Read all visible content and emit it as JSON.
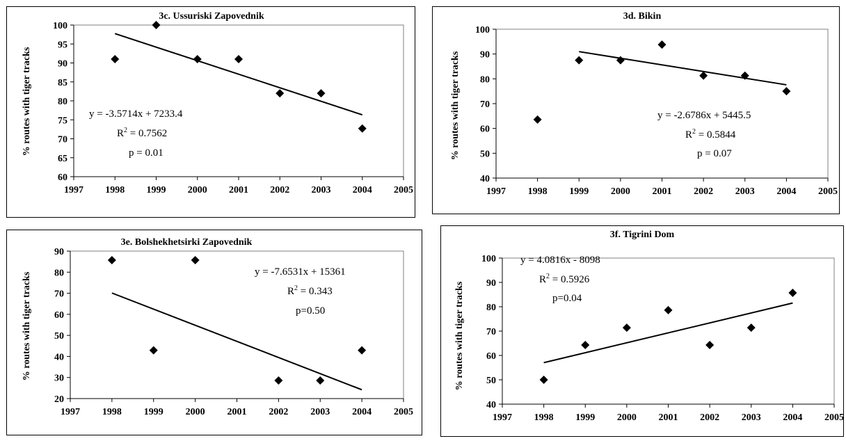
{
  "chart_data": [
    {
      "type": "scatter",
      "title": "3c. Ussuriski Zapovednik",
      "ylabel": "% routes with tiger tracks",
      "xlabel": "",
      "xlim": [
        1997,
        2005
      ],
      "ylim": [
        60,
        100
      ],
      "xticks": [
        1997,
        1998,
        1999,
        2000,
        2001,
        2002,
        2003,
        2004,
        2005
      ],
      "yticks": [
        60,
        65,
        70,
        75,
        80,
        85,
        90,
        95,
        100
      ],
      "points": [
        [
          1998,
          91
        ],
        [
          1999,
          100
        ],
        [
          2000,
          91
        ],
        [
          2001,
          91
        ],
        [
          2002,
          82
        ],
        [
          2003,
          82
        ],
        [
          2004,
          72.7
        ]
      ],
      "trendline": {
        "slope": -3.5714,
        "intercept": 7233.4,
        "x": [
          1998,
          2004
        ]
      },
      "annotations": [
        "y = -3.5714x + 7233.4",
        "R",
        "2",
        " = 0.7562",
        "p = 0.01"
      ],
      "grid": false,
      "marker": "diamond"
    },
    {
      "type": "scatter",
      "title": "3d. Bikin",
      "ylabel": "% routes with tiger tracks",
      "xlabel": "",
      "xlim": [
        1997,
        2005
      ],
      "ylim": [
        40,
        100
      ],
      "xticks": [
        1997,
        1998,
        1999,
        2000,
        2001,
        2002,
        2003,
        2004,
        2005
      ],
      "yticks": [
        40,
        50,
        60,
        70,
        80,
        90,
        100
      ],
      "points": [
        [
          1998,
          63.6
        ],
        [
          1999,
          87.5
        ],
        [
          2000,
          87.5
        ],
        [
          2001,
          93.8
        ],
        [
          2002,
          81.3
        ],
        [
          2003,
          81.3
        ],
        [
          2004,
          75
        ]
      ],
      "trendline": {
        "slope": -2.6786,
        "intercept": 5445.5,
        "x": [
          1999,
          2004
        ]
      },
      "annotations": [
        "y = -2.6786x + 5445.5",
        "R",
        "2",
        " = 0.5844",
        "p = 0.07"
      ],
      "grid": false,
      "marker": "diamond"
    },
    {
      "type": "scatter",
      "title": "3e. Bolshekhetsirki Zapovednik",
      "ylabel": "% routes with tiger tracks",
      "xlabel": "",
      "xlim": [
        1997,
        2005
      ],
      "ylim": [
        20,
        90
      ],
      "xticks": [
        1997,
        1998,
        1999,
        2000,
        2001,
        2002,
        2003,
        2004,
        2005
      ],
      "yticks": [
        20,
        30,
        40,
        50,
        60,
        70,
        80,
        90
      ],
      "points": [
        [
          1998,
          85.7
        ],
        [
          1999,
          42.9
        ],
        [
          2000,
          85.7
        ],
        [
          2002,
          28.6
        ],
        [
          2003,
          28.6
        ],
        [
          2004,
          42.9
        ]
      ],
      "trendline": {
        "slope": -7.6531,
        "intercept": 15361,
        "x": [
          1998,
          2004
        ]
      },
      "annotations": [
        "y = -7.6531x + 15361",
        "R",
        "2",
        " = 0.343",
        "p=0.50"
      ],
      "grid": false,
      "marker": "diamond"
    },
    {
      "type": "scatter",
      "title": "3f. Tigrini Dom",
      "ylabel": "% routes with tiger tracks",
      "xlabel": "",
      "xlim": [
        1997,
        2005
      ],
      "ylim": [
        40,
        100
      ],
      "xticks": [
        1997,
        1998,
        1999,
        2000,
        2001,
        2002,
        2003,
        2004,
        2005
      ],
      "yticks": [
        40,
        50,
        60,
        70,
        80,
        90,
        100
      ],
      "points": [
        [
          1998,
          50
        ],
        [
          1999,
          64.3
        ],
        [
          2000,
          71.4
        ],
        [
          2001,
          78.6
        ],
        [
          2002,
          64.3
        ],
        [
          2003,
          71.4
        ],
        [
          2004,
          85.7
        ]
      ],
      "trendline": {
        "slope": 4.0816,
        "intercept": -8098,
        "x": [
          1998,
          2004
        ]
      },
      "annotations": [
        "y = 4.0816x - 8098",
        "R",
        "2",
        " = 0.5926",
        "p=0.04"
      ],
      "grid": false,
      "marker": "diamond"
    }
  ]
}
